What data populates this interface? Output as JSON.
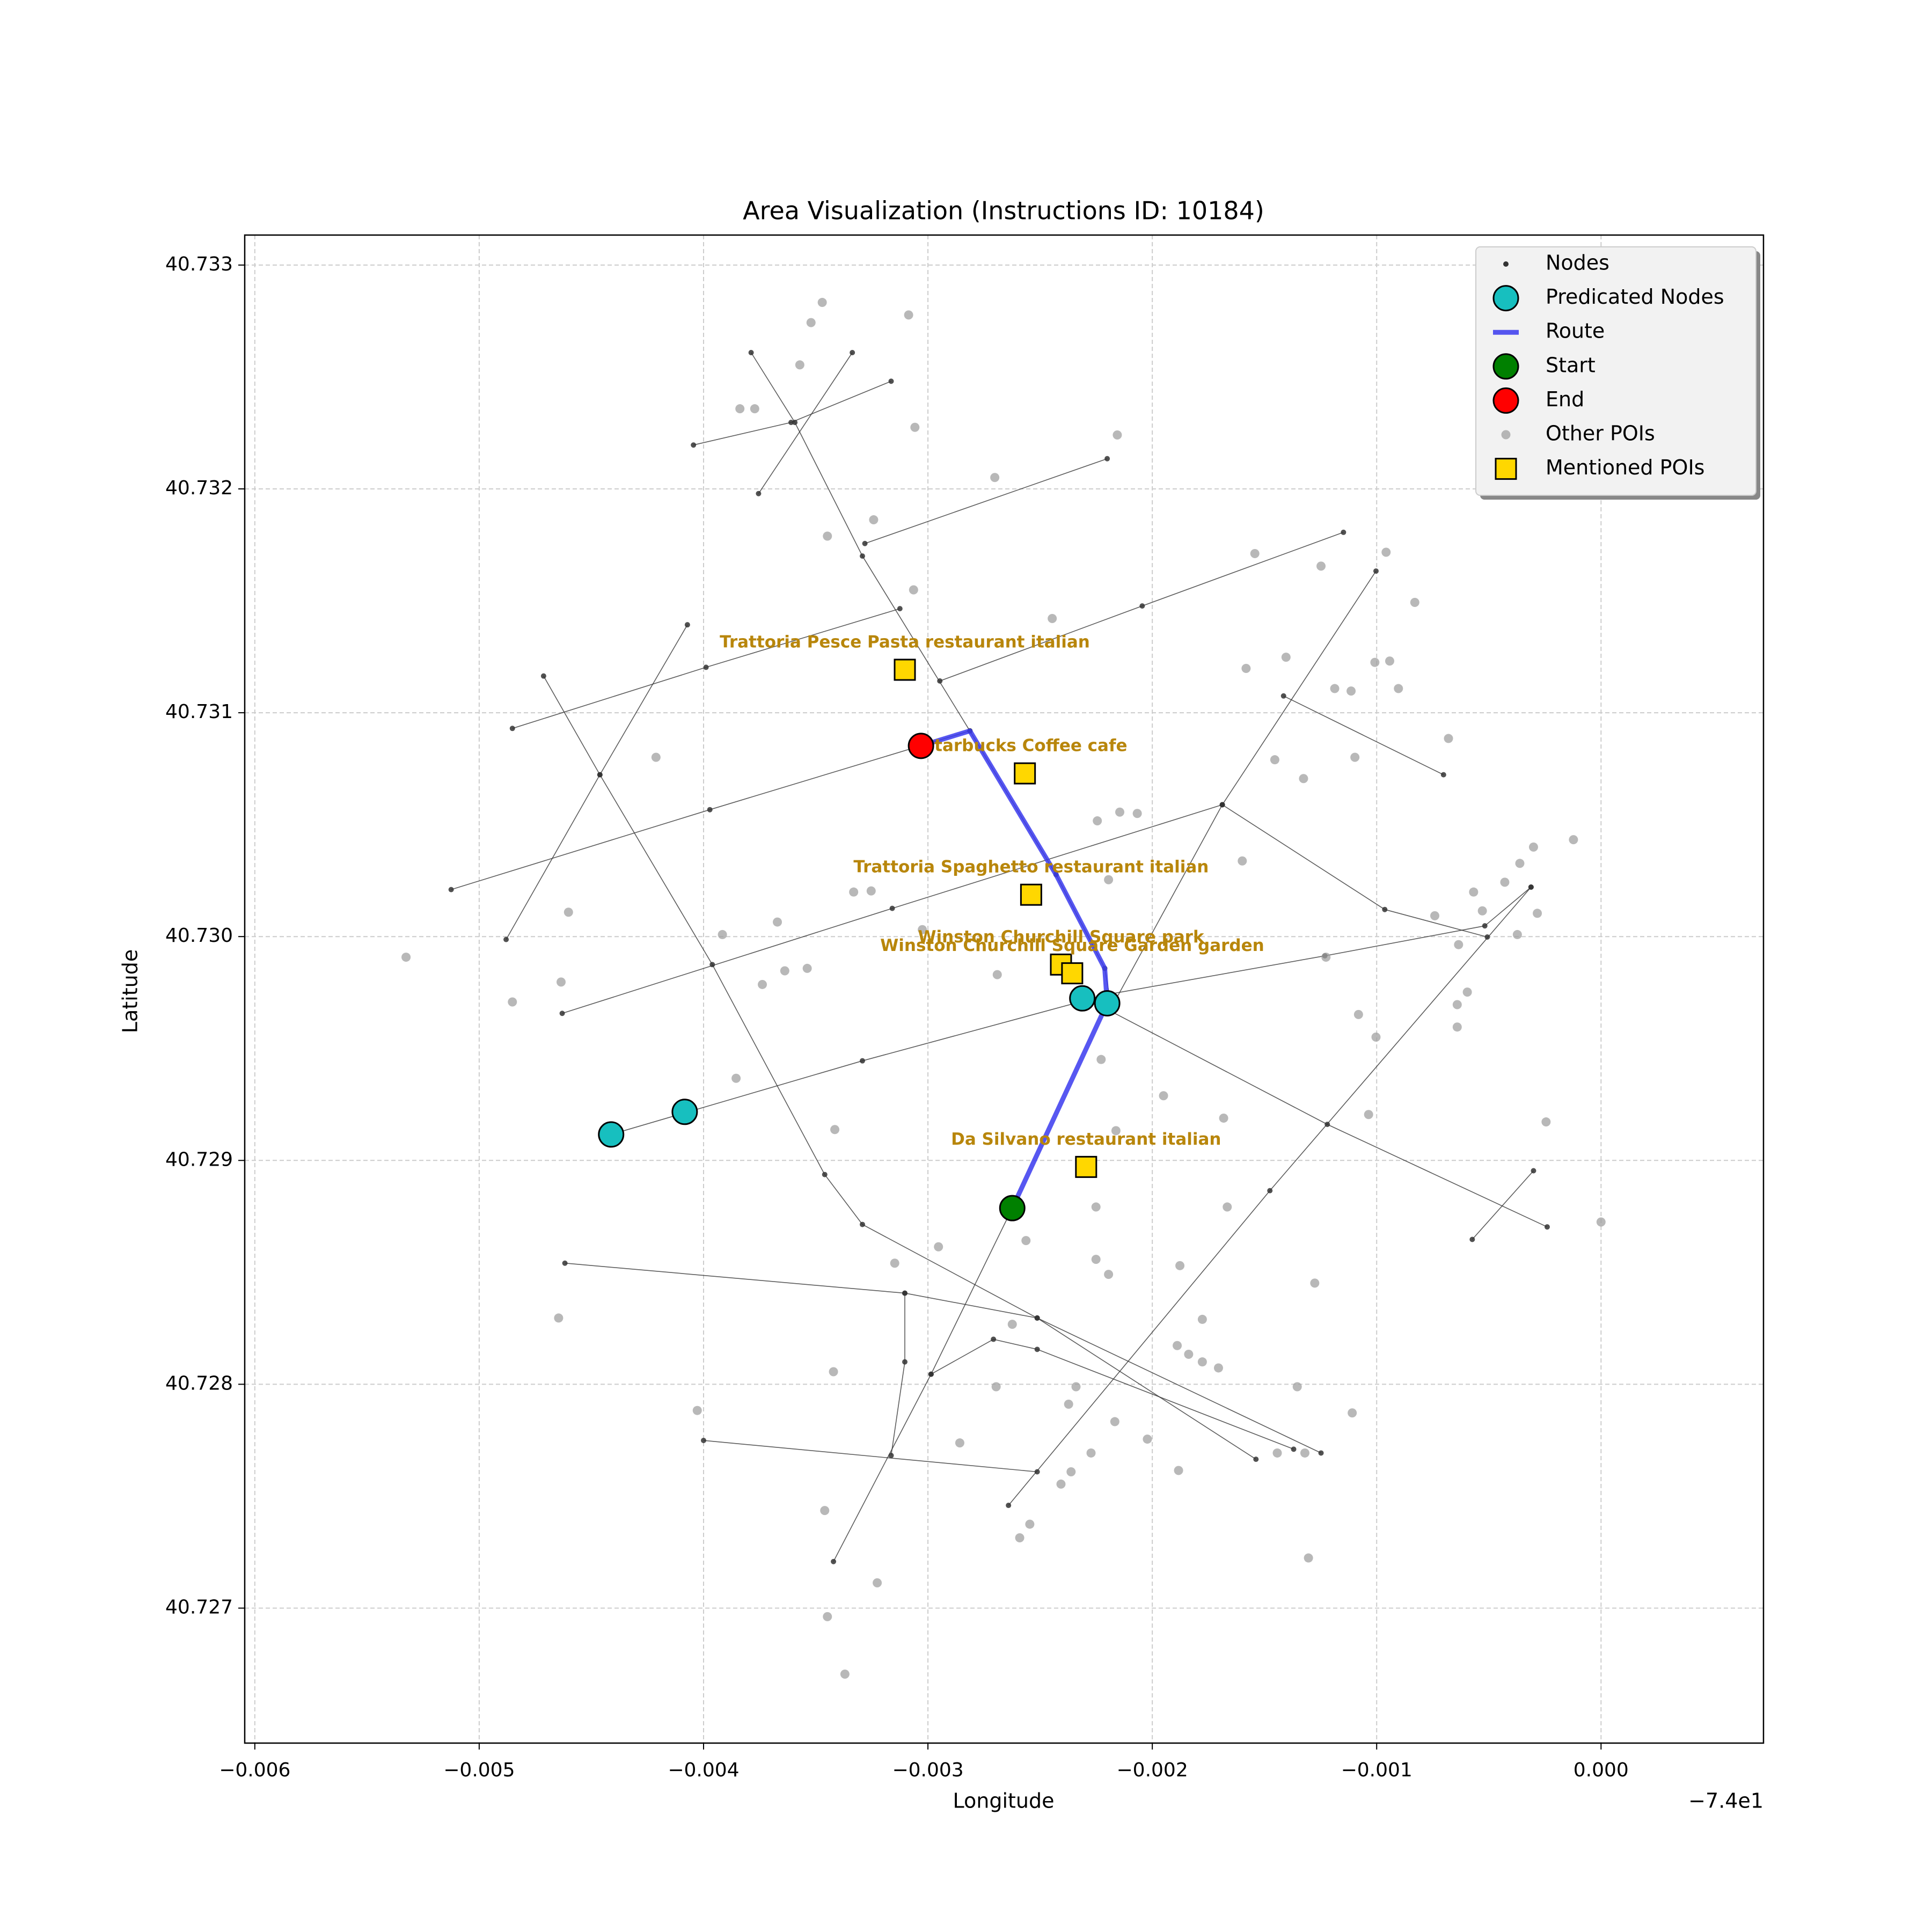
{
  "chart_data": {
    "type": "map",
    "title": "Area Visualization (Instructions ID: 10184)",
    "xlabel": "Longitude",
    "ylabel": "Latitude",
    "offset_label": "−7.4e1",
    "xlim": [
      -0.006045,
      0.000724
    ],
    "ylim": [
      40.726397,
      40.733134
    ],
    "xticks": [
      {
        "value": -0.006,
        "label": "−0.006"
      },
      {
        "value": -0.005,
        "label": "−0.005"
      },
      {
        "value": -0.004,
        "label": "−0.004"
      },
      {
        "value": -0.003,
        "label": "−0.003"
      },
      {
        "value": -0.002,
        "label": "−0.002"
      },
      {
        "value": -0.001,
        "label": "−0.001"
      },
      {
        "value": 0,
        "label": "0.000"
      }
    ],
    "yticks": [
      40.727,
      40.728,
      40.729,
      {
        "value": 40.73,
        "label": "40.730"
      },
      40.731,
      40.732,
      40.733
    ],
    "grid": true,
    "legend_loc": "upper right",
    "label_color": "#b8860b",
    "streets": {
      "name": "Nodes",
      "color": "#333333",
      "lines": [
        {
          "x": [
            -0.005125,
            -0.003972,
            -0.002813
          ],
          "y": [
            40.73021,
            40.730567,
            40.730919
          ]
        },
        {
          "x": [
            -0.004852,
            -0.003989,
            -0.003125
          ],
          "y": [
            40.73093,
            40.731203,
            40.731465
          ]
        },
        {
          "x": [
            -0.002947,
            -0.002045,
            -0.001148
          ],
          "y": [
            40.731142,
            40.731477,
            40.731806
          ]
        },
        {
          "x": [
            -0.003281,
            -0.002201
          ],
          "y": [
            40.731756,
            40.732135
          ]
        },
        {
          "x": [
            -0.004045,
            -0.00361,
            -0.003164
          ],
          "y": [
            40.732196,
            40.732297,
            40.732481
          ]
        },
        {
          "x": [
            -0.00463,
            -0.003159,
            -0.001688
          ],
          "y": [
            40.729657,
            40.730126,
            40.730589
          ]
        },
        {
          "x": [
            -0.004412,
            -0.003292,
            -0.002201
          ],
          "y": [
            40.729116,
            40.729445,
            40.729741
          ]
        },
        {
          "x": [
            -0.002201,
            -0.001231,
            -0.000518,
            -0.000312
          ],
          "y": [
            40.729741,
            40.729914,
            40.730048,
            40.730221
          ]
        },
        {
          "x": [
            -0.001688,
            -0.000964,
            -0.000507
          ],
          "y": [
            40.730589,
            40.730121,
            40.729998
          ]
        },
        {
          "x": [
            -0.003788,
            -0.003593,
            -0.003292,
            -0.002813,
            -0.002429,
            -0.002212,
            -0.002178,
            -0.00122,
            -0.00024
          ],
          "y": [
            40.732609,
            40.732297,
            40.7317,
            40.730919,
            40.730277,
            40.729858,
            40.729663,
            40.729161,
            40.728703
          ]
        },
        {
          "x": [
            -0.004713,
            -0.004462,
            -0.003961,
            -0.00346,
            -0.003292,
            -0.002513,
            -0.001248
          ],
          "y": [
            40.731164,
            40.730723,
            40.729875,
            40.728937,
            40.728714,
            40.728296,
            40.727693
          ]
        },
        {
          "x": [
            -0.004072,
            -0.004462,
            -0.00488
          ],
          "y": [
            40.731393,
            40.730723,
            40.729987
          ]
        },
        {
          "x": [
            -0.003421,
            -0.002986,
            -0.002624
          ],
          "y": [
            40.727208,
            40.728045,
            40.728787
          ]
        },
        {
          "x": [
            -0.001003,
            -0.001688,
            -0.002178
          ],
          "y": [
            40.731633,
            40.730589,
            40.729691
          ]
        },
        {
          "x": [
            -0.002641,
            -0.001476,
            -0.000312
          ],
          "y": [
            40.727459,
            40.728865,
            40.730221
          ]
        },
        {
          "x": [
            -0.004618,
            -0.003103,
            -0.002513,
            -0.001538
          ],
          "y": [
            40.728541,
            40.728407,
            40.728296,
            40.727665
          ]
        },
        {
          "x": [
            -0.004,
            -0.002513
          ],
          "y": [
            40.727749,
            40.727609
          ]
        },
        {
          "x": [
            -0.002986,
            -0.002708,
            -0.002513,
            -0.00137
          ],
          "y": [
            40.728045,
            40.728201,
            40.728156,
            40.72771
          ]
        },
        {
          "x": [
            -0.003103,
            -0.003103,
            -0.003164
          ],
          "y": [
            40.728407,
            40.7281,
            40.727682
          ]
        },
        {
          "x": [
            -0.001415,
            -0.000702
          ],
          "y": [
            40.731075,
            40.730723
          ]
        },
        {
          "x": [
            -0.003337,
            -0.003755
          ],
          "y": [
            40.732609,
            40.731979
          ]
        },
        {
          "x": [
            -0.000301,
            -0.000574
          ],
          "y": [
            40.728954,
            40.728647
          ]
        }
      ]
    },
    "predicted": {
      "name": "Predicated Nodes",
      "color": "#17bfbf",
      "x": [
        -0.004412,
        -0.004084,
        -0.002312,
        -0.002201
      ],
      "y": [
        40.729116,
        40.729217,
        40.729724,
        40.729702
      ]
    },
    "route": {
      "name": "Route",
      "color": "#3a3aee",
      "x": [
        -0.002624,
        -0.002201,
        -0.002212,
        -0.00229,
        -0.002429,
        -0.002813,
        -0.003031
      ],
      "y": [
        40.728787,
        40.729702,
        40.729858,
        40.730009,
        40.730277,
        40.730919,
        40.730852
      ]
    },
    "start": {
      "name": "Start",
      "color": "#008000",
      "x": [
        -0.002624
      ],
      "y": [
        40.728787
      ]
    },
    "end": {
      "name": "End",
      "color": "#ff0000",
      "x": [
        -0.003031
      ],
      "y": [
        40.730852
      ]
    },
    "other_pois": {
      "name": "Other POIs",
      "color": "#a0a0a0",
      "x": [
        -0.003471,
        -0.003086,
        -0.003521,
        -0.003571,
        -0.003838,
        -0.003772,
        -0.003058,
        -0.002156,
        -0.002702,
        -0.003242,
        -0.003448,
        -0.001543,
        -0.000958,
        -0.001248,
        -0.003064,
        -0.00083,
        -0.002446,
        -0.001404,
        -0.001582,
        -0.001008,
        -0.000942,
        -0.001187,
        -0.001114,
        -0.000903,
        -0.00068,
        -0.004212,
        -0.001454,
        -0.001097,
        -0.001326,
        -0.002245,
        -0.002145,
        -0.002067,
        -0.000123,
        -0.000301,
        -0.000362,
        -0.001599,
        -0.003331,
        -0.003253,
        -0.002195,
        -0.000429,
        -0.000568,
        -0.004602,
        -0.003671,
        -0.000741,
        -0.000529,
        -0.000284,
        -0.003916,
        -0.003025,
        -0.000373,
        -0.000635,
        -0.005326,
        -0.001226,
        -0.004635,
        -0.004852,
        -0.003738,
        -0.003638,
        -0.003538,
        -0.002691,
        -0.000596,
        -0.000641,
        -0.001081,
        -0.001003,
        -0.000641,
        -0.002228,
        -0.003855,
        -0.00195,
        -0.001682,
        -0.001036,
        -0.000245,
        -0.003415,
        -0.002162,
        -0.002251,
        -0.001666,
        0,
        -0.002563,
        -0.002953,
        -0.002251,
        -0.003148,
        -0.002195,
        -0.001877,
        -0.001276,
        -0.004646,
        -0.002624,
        -0.001777,
        -0.001889,
        -0.001838,
        -0.001777,
        -0.001705,
        -0.003421,
        -0.002696,
        -0.00234,
        -0.001354,
        -0.004028,
        -0.002373,
        -0.001109,
        -0.002167,
        -0.002858,
        -0.002022,
        -0.002273,
        -0.001443,
        -0.001883,
        -0.002362,
        -0.002407,
        -0.00132,
        -0.00346,
        -0.002546,
        -0.002591,
        -0.001304,
        -0.003226,
        -0.003448,
        -0.00337
      ],
      "y": [
        40.732833,
        40.732777,
        40.732743,
        40.732554,
        40.732358,
        40.732358,
        40.732275,
        40.732241,
        40.732051,
        40.731862,
        40.731789,
        40.731711,
        40.731717,
        40.731655,
        40.731549,
        40.731493,
        40.731421,
        40.731248,
        40.731198,
        40.731225,
        40.731231,
        40.731108,
        40.731097,
        40.731108,
        40.730885,
        40.730801,
        40.73079,
        40.730801,
        40.730706,
        40.730517,
        40.730556,
        40.73055,
        40.730433,
        40.7304,
        40.730327,
        40.730338,
        40.730199,
        40.730204,
        40.730254,
        40.730243,
        40.730199,
        40.730109,
        40.730065,
        40.730093,
        40.730115,
        40.730104,
        40.730009,
        40.730031,
        40.730009,
        40.729964,
        40.729908,
        40.729908,
        40.729797,
        40.729708,
        40.729786,
        40.729847,
        40.729858,
        40.72983,
        40.729752,
        40.729696,
        40.729652,
        40.729551,
        40.729596,
        40.729451,
        40.729367,
        40.729289,
        40.729189,
        40.729205,
        40.729172,
        40.729138,
        40.729133,
        40.728792,
        40.728792,
        40.728725,
        40.728642,
        40.728614,
        40.728558,
        40.728541,
        40.728491,
        40.72853,
        40.728452,
        40.728296,
        40.728268,
        40.72829,
        40.728173,
        40.728134,
        40.7281,
        40.728073,
        40.728056,
        40.727989,
        40.727989,
        40.727989,
        40.727883,
        40.727911,
        40.727872,
        40.727833,
        40.727738,
        40.727755,
        40.727693,
        40.727693,
        40.727615,
        40.727609,
        40.727554,
        40.727693,
        40.727436,
        40.727375,
        40.727314,
        40.727224,
        40.727113,
        40.726962,
        40.726705
      ]
    },
    "mentioned_pois": {
      "name": "Mentioned POIs",
      "color": "#ffd700",
      "x": [
        -0.003103,
        -0.002568,
        -0.00254,
        -0.002407,
        -0.002357,
        -0.002295
      ],
      "y": [
        40.731192,
        40.730729,
        40.730187,
        40.729875,
        40.729836,
        40.728971
      ],
      "labels": [
        "Trattoria Pesce Pasta restaurant italian",
        "Starbucks Coffee cafe",
        "Trattoria Spaghetto restaurant italian",
        "Winston Churchill Square   park",
        "Winston Churchill Square Garden   garden",
        "Da Silvano restaurant italian"
      ]
    }
  }
}
